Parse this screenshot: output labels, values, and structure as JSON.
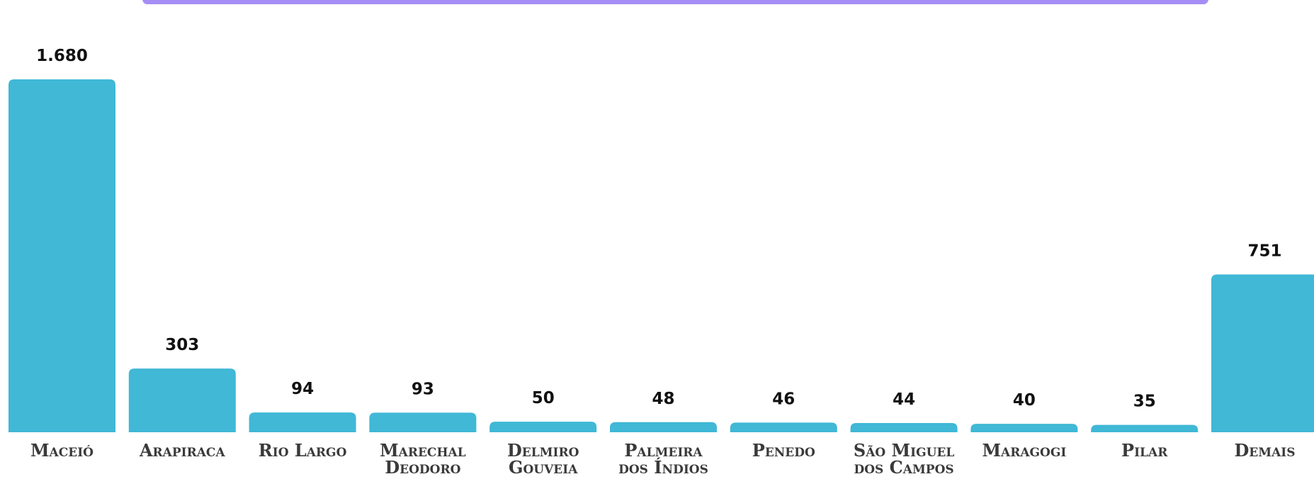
{
  "chart_data": {
    "type": "bar",
    "categories": [
      "Maceió",
      "Arapiraca",
      "Rio Largo",
      "Marechal Deodoro",
      "Delmiro Gouveia",
      "Palmeira dos Índios",
      "Penedo",
      "São Miguel dos Campos",
      "Maragogi",
      "Pilar",
      "Demais"
    ],
    "values": [
      1680,
      303,
      94,
      93,
      50,
      48,
      46,
      44,
      40,
      35,
      751
    ],
    "value_labels": [
      "1.680",
      "303",
      "94",
      "93",
      "50",
      "48",
      "46",
      "44",
      "40",
      "35",
      "751"
    ],
    "color": "#40b8d6"
  }
}
